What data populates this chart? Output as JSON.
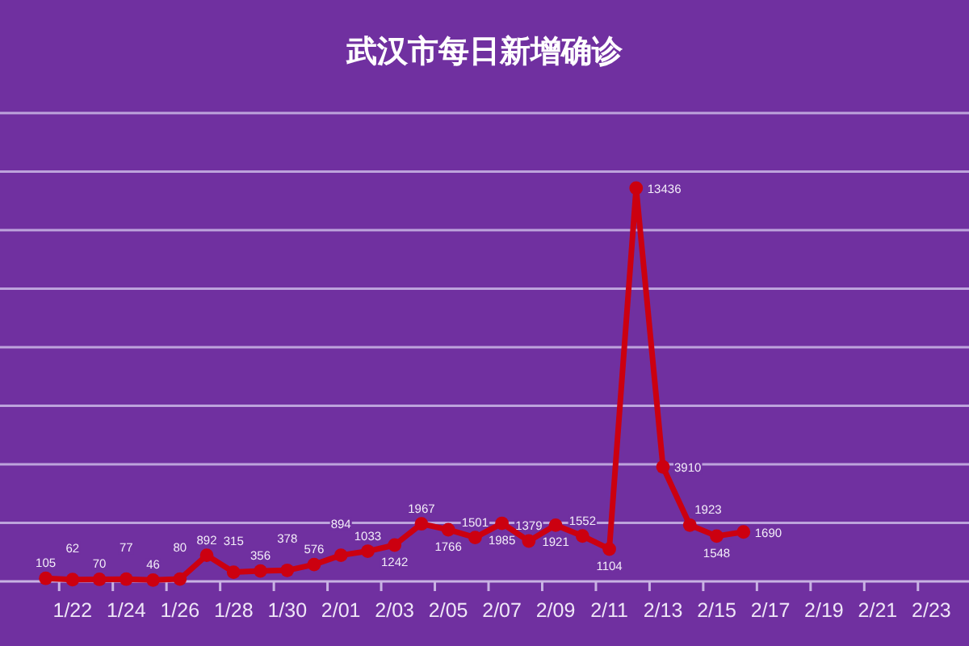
{
  "chart_data": {
    "type": "line",
    "title": "武汉市每日新增确诊",
    "categories": [
      null,
      "1/22",
      null,
      "1/24",
      null,
      "1/26",
      null,
      "1/28",
      null,
      "1/30",
      null,
      "2/01",
      null,
      "2/03",
      null,
      "2/05",
      null,
      "2/07",
      null,
      "2/09",
      null,
      "2/11",
      null,
      "2/13",
      null,
      "2/15",
      null,
      "2/17",
      null,
      "2/19",
      null,
      "2/21",
      null,
      "2/23"
    ],
    "series": [
      {
        "color": "#cc0010",
        "values": [
          105,
          62,
          70,
          77,
          46,
          80,
          892,
          315,
          356,
          378,
          576,
          894,
          1033,
          1242,
          1967,
          1766,
          1501,
          1985,
          1379,
          1921,
          1552,
          1104,
          13436,
          3910,
          1923,
          1548,
          1690,
          null,
          null,
          null,
          null,
          null,
          null,
          null
        ]
      }
    ],
    "ylim": [
      0,
      16000
    ],
    "yticks": [
      {
        "value": 2000,
        "label": null
      },
      {
        "value": 4000,
        "label": null
      },
      {
        "value": 6000,
        "label": null
      },
      {
        "value": 8000,
        "label": null
      },
      {
        "value": 10000,
        "label": null
      },
      {
        "value": 12000,
        "label": null
      },
      {
        "value": 14000,
        "label": null
      },
      {
        "value": 16000,
        "label": null
      }
    ],
    "grid": "y",
    "tick_labels": "x",
    "marker": "circle",
    "line_style": "solid",
    "data_labels": true
  }
}
